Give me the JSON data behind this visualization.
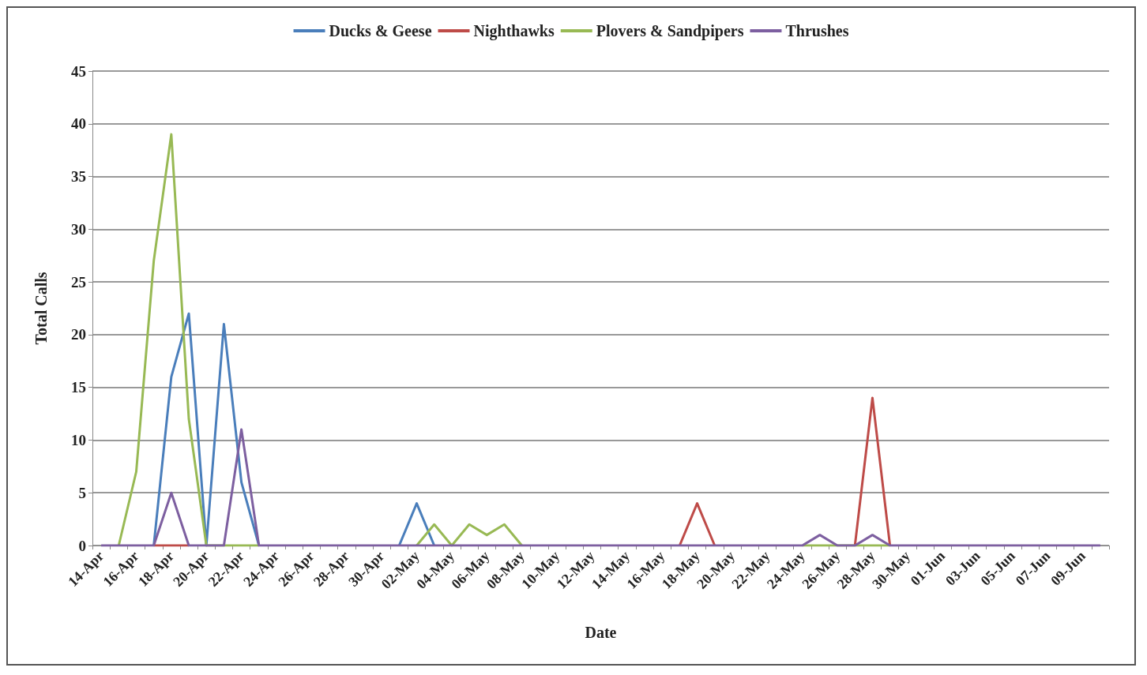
{
  "chart_data": {
    "type": "line",
    "xlabel": "Date",
    "ylabel": "Total Calls",
    "legend": "top",
    "grid": "y",
    "marker": "none",
    "ylim": [
      0,
      45
    ],
    "yticks": [
      0,
      5,
      10,
      15,
      20,
      25,
      30,
      35,
      40,
      45
    ],
    "categories": [
      "14-Apr",
      null,
      "16-Apr",
      null,
      "18-Apr",
      null,
      "20-Apr",
      null,
      "22-Apr",
      null,
      "24-Apr",
      null,
      "26-Apr",
      null,
      "28-Apr",
      null,
      "30-Apr",
      null,
      "02-May",
      null,
      "04-May",
      null,
      "06-May",
      null,
      "08-May",
      null,
      "10-May",
      null,
      "12-May",
      null,
      "14-May",
      null,
      "16-May",
      null,
      "18-May",
      null,
      "20-May",
      null,
      "22-May",
      null,
      "24-May",
      null,
      "26-May",
      null,
      "28-May",
      null,
      "30-May",
      null,
      "01-Jun",
      null,
      "03-Jun",
      null,
      "05-Jun",
      null,
      "07-Jun",
      null,
      "09-Jun",
      null
    ],
    "series": [
      {
        "name": "Ducks & Geese",
        "color": "#4a7ebb",
        "values": [
          null,
          null,
          null,
          0,
          16,
          22,
          0,
          21,
          6,
          0,
          null,
          null,
          null,
          null,
          null,
          null,
          null,
          0,
          4,
          0,
          null,
          null,
          null,
          null,
          null,
          null,
          null,
          null,
          null,
          null,
          null,
          null,
          null,
          null,
          null,
          null,
          null,
          null,
          null,
          null,
          null,
          null,
          null,
          null,
          null,
          null,
          null,
          null,
          null,
          null,
          null,
          null,
          null,
          null,
          null,
          null,
          null,
          null
        ]
      },
      {
        "name": "Nighthawks",
        "color": "#be4b48",
        "values": [
          null,
          null,
          null,
          0,
          0,
          0,
          null,
          null,
          null,
          null,
          null,
          null,
          null,
          null,
          null,
          null,
          null,
          null,
          null,
          null,
          null,
          null,
          null,
          null,
          null,
          null,
          null,
          null,
          null,
          null,
          null,
          null,
          null,
          0,
          4,
          0,
          null,
          null,
          null,
          null,
          null,
          null,
          null,
          0,
          14,
          0,
          null,
          null,
          null,
          null,
          null,
          null,
          null,
          null,
          null,
          null,
          null,
          null
        ]
      },
      {
        "name": "Plovers & Sandpipers",
        "color": "#98b954",
        "values": [
          null,
          0,
          7,
          27,
          39,
          12,
          0,
          0,
          0,
          0,
          null,
          null,
          null,
          null,
          null,
          null,
          null,
          null,
          0,
          2,
          0,
          2,
          1,
          2,
          0,
          null,
          null,
          null,
          null,
          null,
          null,
          null,
          null,
          null,
          null,
          null,
          null,
          null,
          null,
          null,
          0,
          0,
          0,
          0,
          0,
          0,
          null,
          null,
          null,
          null,
          null,
          null,
          null,
          null,
          null,
          null,
          null,
          null
        ]
      },
      {
        "name": "Thrushes",
        "color": "#7d5fa0",
        "values": [
          0,
          0,
          0,
          0,
          5,
          0,
          0,
          0,
          11,
          0,
          0,
          0,
          0,
          0,
          0,
          0,
          0,
          0,
          0,
          0,
          0,
          0,
          0,
          0,
          0,
          0,
          0,
          0,
          0,
          0,
          0,
          0,
          0,
          0,
          0,
          0,
          0,
          0,
          0,
          0,
          0,
          1,
          0,
          0,
          1,
          0,
          0,
          0,
          0,
          0,
          0,
          0,
          0,
          0,
          0,
          0,
          0,
          0
        ]
      }
    ]
  }
}
